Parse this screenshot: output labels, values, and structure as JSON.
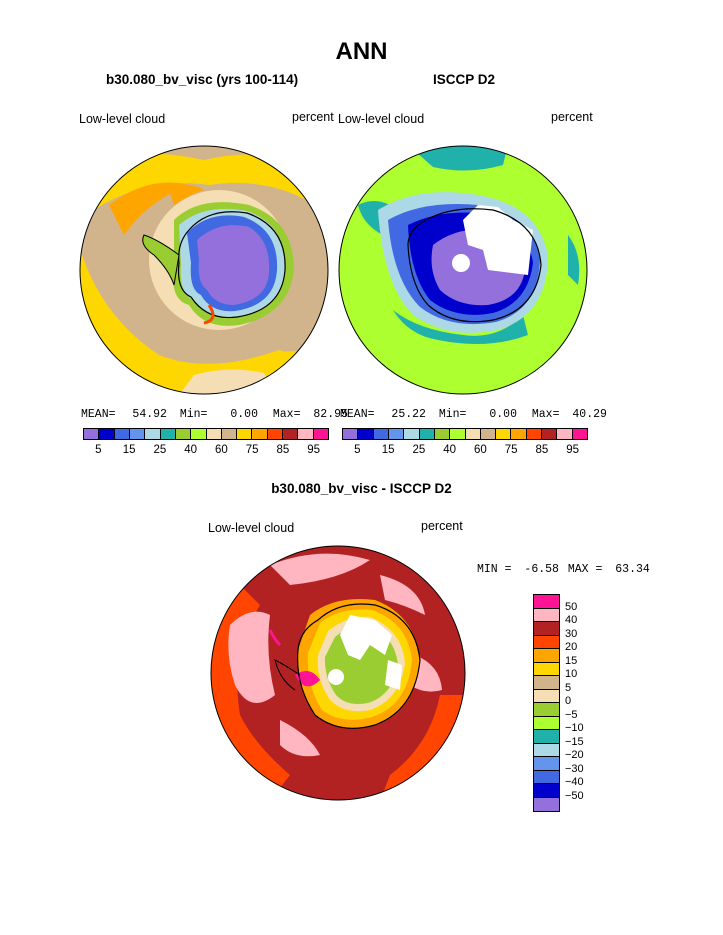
{
  "page": {
    "title": "ANN",
    "subtitle_left": "b30.080_bv_visc (yrs 100-114)",
    "subtitle_right": "ISCCP D2",
    "diff_title": "b30.080_bv_visc - ISCCP D2"
  },
  "panels": [
    {
      "variable": "Low-level cloud",
      "units": "percent",
      "stats": {
        "mean_label": "MEAN=",
        "mean": "54.92",
        "min_label": "Min=",
        "min": "0.00",
        "max_label": "Max=",
        "max": "82.95"
      }
    },
    {
      "variable": "Low-level cloud",
      "units": "percent",
      "stats": {
        "mean_label": "MEAN=",
        "mean": "25.22",
        "min_label": "Min=",
        "min": "0.00",
        "max_label": "Max=",
        "max": "40.29"
      }
    }
  ],
  "diff_panel": {
    "variable": "Low-level cloud",
    "units": "percent",
    "min_label": "MIN =",
    "min": "-6.58",
    "max_label": "MAX =",
    "max": "63.34"
  },
  "colorbar": {
    "colors": [
      "#9370db",
      "#0000cd",
      "#4169e1",
      "#6495ed",
      "#add8e6",
      "#20b2aa",
      "#9acd32",
      "#adff2f",
      "#f5deb3",
      "#d2b48c",
      "#ffd700",
      "#ffa500",
      "#ff4500",
      "#b22222",
      "#ffb6c1",
      "#ff1493"
    ],
    "tick_labels": [
      "5",
      "15",
      "25",
      "40",
      "60",
      "75",
      "85",
      "95"
    ]
  },
  "diff_colorbar": {
    "colors": [
      "#ff1493",
      "#ffb6c1",
      "#b22222",
      "#ff4500",
      "#ffa500",
      "#ffd700",
      "#d2b48c",
      "#f5deb3",
      "#9acd32",
      "#adff2f",
      "#20b2aa",
      "#add8e6",
      "#6495ed",
      "#4169e1",
      "#0000cd",
      "#9370db"
    ],
    "labels": [
      "50",
      "40",
      "30",
      "20",
      "15",
      "10",
      "5",
      "0",
      "−5",
      "−10",
      "−15",
      "−20",
      "−30",
      "−40",
      "−50"
    ]
  }
}
